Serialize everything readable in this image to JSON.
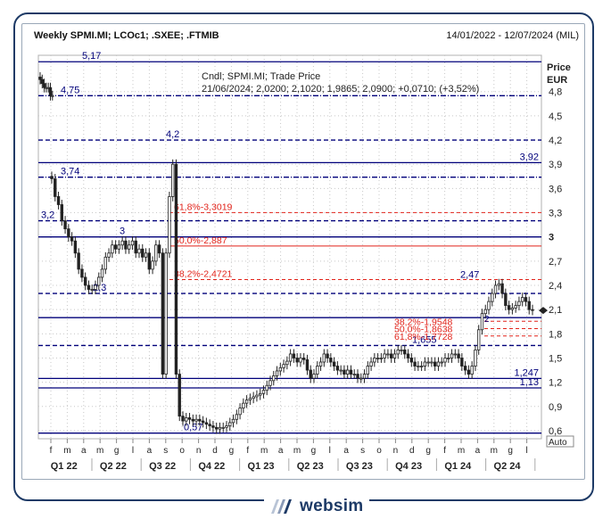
{
  "header": {
    "title": "Weekly SPMI.MI; LCOc1; .SXEE; .FTMIB",
    "date_range": "14/01/2022 - 12/07/2024 (MIL)"
  },
  "brand": {
    "name": "websim"
  },
  "colors": {
    "navy": "#00007a",
    "red": "#e2231a",
    "candle": "#222222",
    "grid": "#c8c8c8"
  },
  "chart_data": {
    "type": "candlestick",
    "ylim": [
      0.5,
      5.25
    ],
    "y_axis_title": [
      "Price",
      "EUR"
    ],
    "y_ticks": [
      0.6,
      0.9,
      1.2,
      1.5,
      1.8,
      2.1,
      2.4,
      2.7,
      3,
      3.3,
      3.6,
      3.9,
      4.2,
      4.5,
      4.8
    ],
    "y_tick_labels": [
      "0,6",
      "0,9",
      "1,2",
      "1,5",
      "1,8",
      "2,1",
      "2,4",
      "2,7",
      "3",
      "3,3",
      "3,6",
      "3,9",
      "4,2",
      "4,5",
      "4,8"
    ],
    "auto_label": "Auto",
    "x_month_labels": [
      "f",
      "m",
      "a",
      "m",
      "g",
      "l",
      "a",
      "s",
      "o",
      "n",
      "d",
      "g",
      "f",
      "m",
      "a",
      "m",
      "g",
      "l",
      "a",
      "s",
      "o",
      "n",
      "d",
      "g",
      "f",
      "m",
      "a",
      "m",
      "g",
      "l"
    ],
    "x_quarters": [
      "Q1 22",
      "Q2 22",
      "Q3 22",
      "Q4 22",
      "Q1 23",
      "Q2 23",
      "Q3 23",
      "Q4 23",
      "Q1 24",
      "Q2 24"
    ],
    "info": {
      "line1": "Cndl; SPMI.MI; Trade Price",
      "line2": "21/06/2024; 2,0200; 2,1020; 1,9865; 2,0900; +0,0710; (+3,52%)"
    },
    "last_price": 2.09,
    "horizontal_levels": [
      {
        "value": 5.17,
        "label": "5,17",
        "style": "solid"
      },
      {
        "value": 4.75,
        "label": "4,75",
        "style": "dashdot"
      },
      {
        "value": 4.2,
        "label": "4,2",
        "style": "dashed"
      },
      {
        "value": 3.92,
        "label": "3,92",
        "style": "solid"
      },
      {
        "value": 3.74,
        "label": "3,74",
        "style": "dashdot"
      },
      {
        "value": 3.2,
        "label": "3,2",
        "style": "dashed"
      },
      {
        "value": 3.0,
        "label": "3",
        "style": "solid"
      },
      {
        "value": 2.3,
        "label": "2,3",
        "style": "dashed"
      },
      {
        "value": 2.0,
        "label": "",
        "style": "solid"
      },
      {
        "value": 1.655,
        "label": "1,655",
        "style": "dashed"
      },
      {
        "value": 1.247,
        "label": "1,247",
        "style": "solid"
      },
      {
        "value": 1.13,
        "label": "1,13",
        "style": "solid"
      },
      {
        "value": 0.57,
        "label": "0,57",
        "style": "solid"
      }
    ],
    "fibonacci_main": [
      {
        "value": 3.3019,
        "label": "61,8%-3,3019"
      },
      {
        "value": 2.887,
        "label": "50,0%-2,887"
      },
      {
        "value": 2.4721,
        "label": "38,2%-2,4721"
      }
    ],
    "fibonacci_recent": [
      {
        "value": 1.9548,
        "label": "38,2%-1,9548"
      },
      {
        "value": 1.8638,
        "label": "50,0%-1,8638"
      },
      {
        "value": 1.7728,
        "label": "61,8%-1,7728"
      }
    ],
    "recent_high": {
      "value": 2.47,
      "label": "2,47"
    },
    "recent_low_label": "2",
    "candles": [
      [
        4.95,
        4.9,
        4.85,
        4.85,
        4.85,
        4.75,
        4.75
      ],
      [
        3.72,
        3.5,
        3.4,
        3.2,
        3.1,
        3.0,
        2.95,
        2.8,
        2.6,
        2.5,
        2.4,
        2.35,
        2.35,
        2.4,
        2.5,
        2.6,
        2.75,
        2.8,
        2.9,
        2.85,
        2.9,
        2.95,
        2.85,
        2.9,
        2.95,
        2.8,
        2.85,
        2.75,
        2.8,
        2.6,
        2.7,
        2.9,
        2.8,
        1.3,
        2.8,
        3.5,
        3.9,
        1.3,
        0.78,
        0.72,
        0.76,
        0.74,
        0.72,
        0.74,
        0.72,
        0.7,
        0.68,
        0.66,
        0.64,
        0.62,
        0.64,
        0.64,
        0.66,
        0.7,
        0.74,
        0.8,
        0.88,
        0.94,
        0.98,
        1.0,
        1.02,
        1.04,
        1.06,
        1.1,
        1.16,
        1.22,
        1.28,
        1.34,
        1.38,
        1.42,
        1.46,
        1.55,
        1.5,
        1.45,
        1.5,
        1.48,
        1.35,
        1.25,
        1.3,
        1.4,
        1.45,
        1.55,
        1.5,
        1.45,
        1.4,
        1.35,
        1.35,
        1.3,
        1.35,
        1.3,
        1.3,
        1.25,
        1.25,
        1.3,
        1.4,
        1.45,
        1.5,
        1.5,
        1.5,
        1.55,
        1.55,
        1.5,
        1.55,
        1.6,
        1.6,
        1.55,
        1.5,
        1.45,
        1.4,
        1.4,
        1.4,
        1.45,
        1.45,
        1.45,
        1.4,
        1.45,
        1.45,
        1.5,
        1.5,
        1.55,
        1.55,
        1.5,
        1.4,
        1.35,
        1.3,
        1.4,
        1.6,
        1.85,
        2.05,
        2.1,
        2.2,
        2.3,
        2.4,
        2.42,
        2.3,
        2.15,
        2.1,
        2.12,
        2.15,
        2.2,
        2.25,
        2.2,
        2.1,
        2.09
      ]
    ]
  }
}
